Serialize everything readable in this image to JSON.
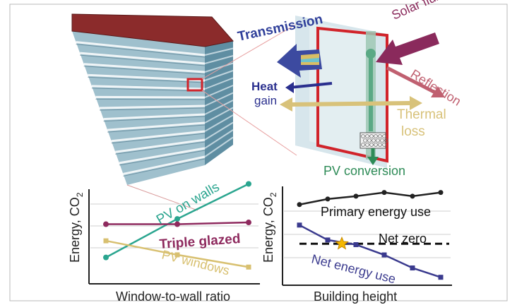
{
  "diagram": {
    "labels": {
      "transmission": "Transmission",
      "solar_flux": "Solar flux",
      "reflection": "Reflection",
      "heat": "Heat",
      "gain": "gain",
      "thermal": "Thermal",
      "loss": "loss",
      "pv_conversion": "PV conversion"
    },
    "colors": {
      "roof": "#8b2b2b",
      "facade": "#8fb3c2",
      "window_frame": "#d1232a",
      "transmission_arrow": "#2f3f9a",
      "solar_flux_arrow": "#8a2a5c",
      "reflection_arrow": "#c06070",
      "thermal_arrow": "#d8c27a",
      "pv_arrow": "#2e8b57"
    }
  },
  "chart_data": [
    {
      "type": "line",
      "xlabel": "Window-to-wall ratio",
      "ylabel": "Energy, CO2",
      "ylabel_main": "Energy, CO",
      "ylabel_sub": "2",
      "ylim": [
        0,
        100
      ],
      "grid": true,
      "series": [
        {
          "name": "PV on walls",
          "color": "#2aa58f",
          "x": [
            0,
            0.5,
            1
          ],
          "values": [
            14,
            58,
            98
          ]
        },
        {
          "name": "Triple glazed",
          "color": "#8e2a5e",
          "x": [
            0,
            0.5,
            1
          ],
          "values": [
            52,
            52,
            54
          ]
        },
        {
          "name": "PV windows",
          "color": "#d8c070",
          "x": [
            0,
            0.5,
            1
          ],
          "values": [
            33,
            17,
            3
          ]
        }
      ]
    },
    {
      "type": "line",
      "xlabel": "Building height",
      "ylabel": "Energy, CO2",
      "ylabel_main": "Energy, CO",
      "ylabel_sub": "2",
      "ylim": [
        0,
        100
      ],
      "grid": true,
      "annotations": [
        "Net zero"
      ],
      "net_zero_level": 40,
      "series": [
        {
          "name": "Primary energy use",
          "color": "#222222",
          "x": [
            1,
            2,
            3,
            4,
            5,
            6
          ],
          "values": [
            82,
            88,
            91,
            95,
            91,
            95
          ]
        },
        {
          "name": "Net energy use",
          "color": "#3a3a8e",
          "x": [
            1,
            2,
            3,
            4,
            5,
            6
          ],
          "values": [
            60,
            44,
            39,
            28,
            14,
            4
          ]
        }
      ],
      "marker_star": {
        "x": 2.5,
        "y": 40
      }
    }
  ]
}
